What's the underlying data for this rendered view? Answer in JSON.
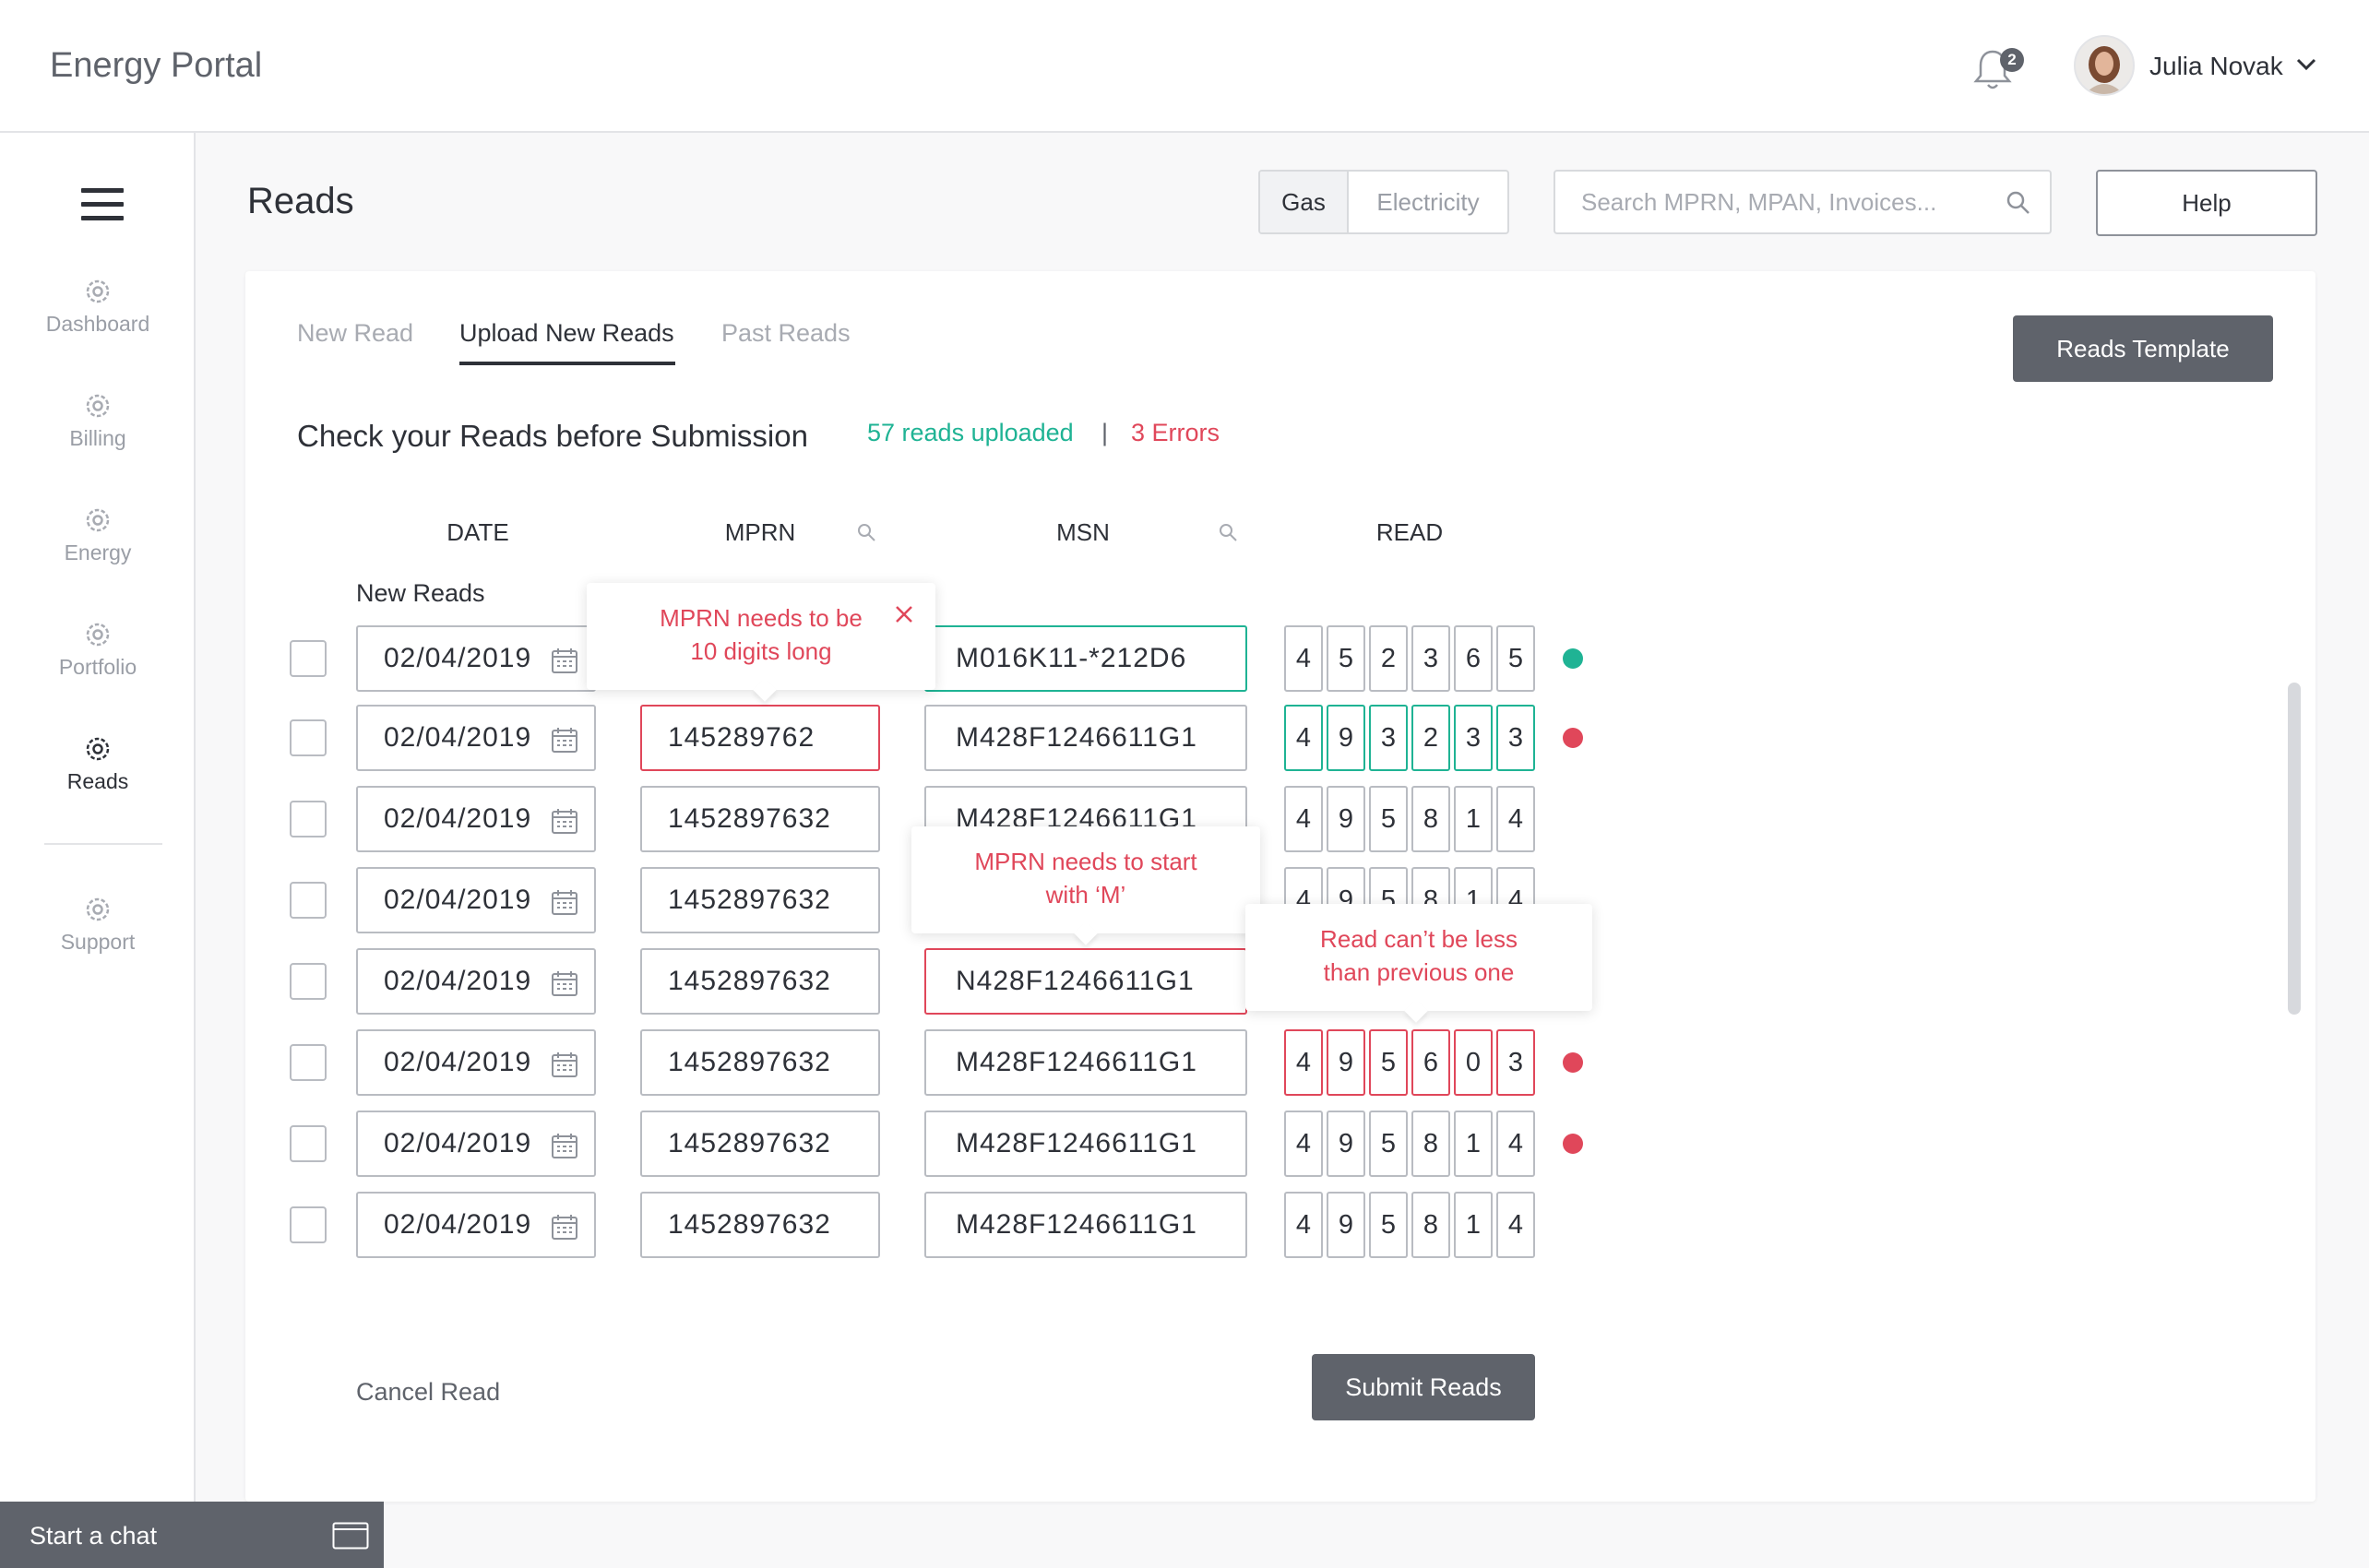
{
  "app": {
    "title": "Energy Portal"
  },
  "header": {
    "notification_count": "2",
    "user_name": "Julia Novak"
  },
  "sidebar": {
    "items": [
      {
        "label": "Dashboard",
        "icon": "gear-icon",
        "active": false
      },
      {
        "label": "Billing",
        "icon": "gear-icon",
        "active": false
      },
      {
        "label": "Energy",
        "icon": "gear-icon",
        "active": false
      },
      {
        "label": "Portfolio",
        "icon": "gear-icon",
        "active": false
      },
      {
        "label": "Reads",
        "icon": "gear-icon",
        "active": true
      },
      {
        "label": "Support",
        "icon": "gear-icon",
        "active": false
      }
    ]
  },
  "page": {
    "title": "Reads",
    "utility_toggle": {
      "options": [
        "Gas",
        "Electricity"
      ],
      "selected": "Gas"
    },
    "search": {
      "placeholder": "Search MPRN, MPAN, Invoices...",
      "value": ""
    },
    "help_label": "Help"
  },
  "card": {
    "tabs": [
      {
        "label": "New Read",
        "active": false
      },
      {
        "label": "Upload New Reads",
        "active": true
      },
      {
        "label": "Past Reads",
        "active": false
      }
    ],
    "template_button": "Reads Template",
    "check_title": "Check your Reads before Submission",
    "uploaded": "57 reads uploaded",
    "separator": "|",
    "errors": "3 Errors",
    "columns": [
      "DATE",
      "MPRN",
      "MSN",
      "READ"
    ],
    "group_label": "New Reads",
    "rows": [
      {
        "date": "02/04/2019",
        "mprn": "",
        "msn": "M016K11-*212D6",
        "read": [
          "4",
          "5",
          "2",
          "3",
          "6",
          "5"
        ],
        "status": "green"
      },
      {
        "date": "02/04/2019",
        "mprn": "145289762",
        "msn": "M428F1246611G1",
        "read": [
          "4",
          "9",
          "3",
          "2",
          "3",
          "3"
        ],
        "status": "red"
      },
      {
        "date": "02/04/2019",
        "mprn": "1452897632",
        "msn": "M428F1246611G1",
        "read": [
          "4",
          "9",
          "5",
          "8",
          "1",
          "4"
        ],
        "status": ""
      },
      {
        "date": "02/04/2019",
        "mprn": "1452897632",
        "msn": "",
        "read": [
          "4",
          "9",
          "5",
          "8",
          "1",
          "4"
        ],
        "status": ""
      },
      {
        "date": "02/04/2019",
        "mprn": "1452897632",
        "msn": "N428F1246611G1",
        "read": [],
        "status": ""
      },
      {
        "date": "02/04/2019",
        "mprn": "1452897632",
        "msn": "M428F1246611G1",
        "read": [
          "4",
          "9",
          "5",
          "6",
          "0",
          "3"
        ],
        "status": "red"
      },
      {
        "date": "02/04/2019",
        "mprn": "1452897632",
        "msn": "M428F1246611G1",
        "read": [
          "4",
          "9",
          "5",
          "8",
          "1",
          "4"
        ],
        "status": "red"
      },
      {
        "date": "02/04/2019",
        "mprn": "1452897632",
        "msn": "M428F1246611G1",
        "read": [
          "4",
          "9",
          "5",
          "8",
          "1",
          "4"
        ],
        "status": ""
      }
    ],
    "tooltips": {
      "mprn_length": [
        "MPRN needs to be",
        "10 digits long"
      ],
      "msn_start": [
        "MPRN needs to start",
        "with ‘M’"
      ],
      "read_less": [
        "Read can’t be less",
        "than previous one"
      ]
    },
    "cancel_label": "Cancel Read",
    "submit_label": "Submit Reads"
  },
  "chat": {
    "label": "Start a chat"
  },
  "colors": {
    "accent_green": "#1fb394",
    "error_red": "#e0475a",
    "button_gray": "#5f636b"
  }
}
